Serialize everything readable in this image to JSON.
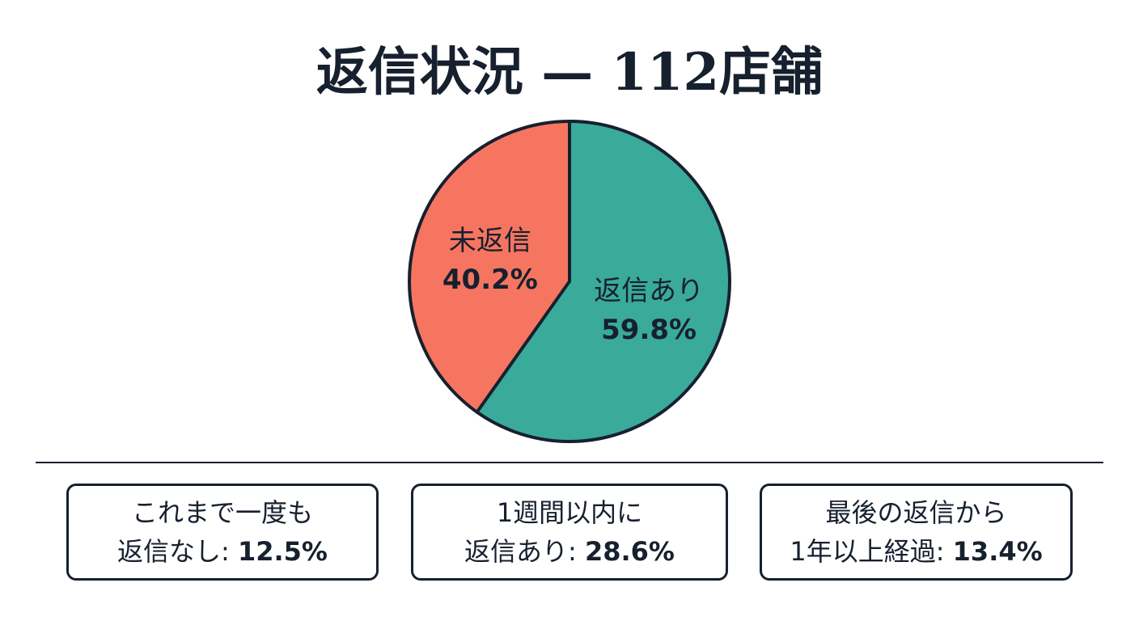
{
  "title": "返信状況 — 112店舗",
  "chart_data": {
    "type": "pie",
    "slices": [
      {
        "label": "返信あり",
        "value": 59.8,
        "value_label": "59.8%",
        "color": "#3aaa9a"
      },
      {
        "label": "未返信",
        "value": 40.2,
        "value_label": "40.2%",
        "color": "#f67560"
      }
    ]
  },
  "stats": [
    {
      "line1": "これまで一度も",
      "line2_label": "返信なし: ",
      "value": "12.5%"
    },
    {
      "line1": "1週間以内に",
      "line2_label": "返信あり: ",
      "value": "28.6%"
    },
    {
      "line1": "最後の返信から",
      "line2_label": "1年以上経過: ",
      "value": "13.4%"
    }
  ]
}
